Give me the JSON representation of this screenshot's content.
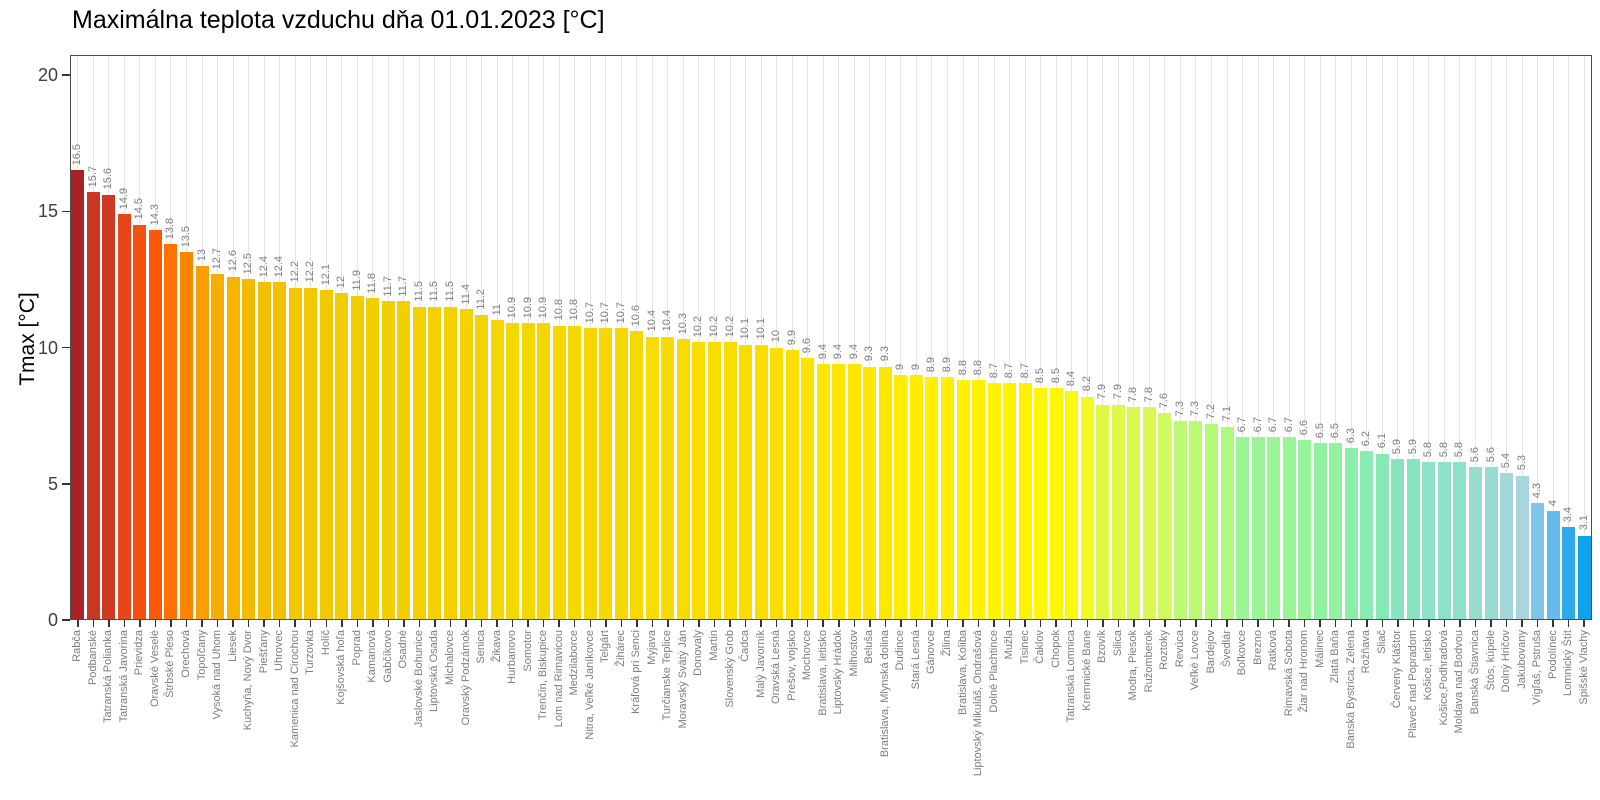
{
  "title": "Maximálna teplota vzduchu dňa 01.01.2023 [°C]",
  "y_axis": {
    "label": "Tmax [°C]",
    "ticks": [
      0,
      5,
      10,
      15,
      20
    ]
  },
  "colors": {
    "panel_border": "#4d4d4d",
    "gridline": "#e4e4e4",
    "axis_tick_text": "#404040",
    "bar_label_text": "#7d7d7d",
    "palette_stops": [
      {
        "value": 16.5,
        "color": "#A92226"
      },
      {
        "value": 15.9,
        "color": "#C03125"
      },
      {
        "value": 15.5,
        "color": "#D23B21"
      },
      {
        "value": 15.0,
        "color": "#E2431D"
      },
      {
        "value": 14.6,
        "color": "#F24E12"
      },
      {
        "value": 14.2,
        "color": "#FB5A06"
      },
      {
        "value": 13.8,
        "color": "#FF7100"
      },
      {
        "value": 13.4,
        "color": "#FF8A00"
      },
      {
        "value": 13.0,
        "color": "#FB9E00"
      },
      {
        "value": 12.7,
        "color": "#F6AE00"
      },
      {
        "value": 12.4,
        "color": "#F2C000"
      },
      {
        "value": 12.0,
        "color": "#F1CC00"
      },
      {
        "value": 11.0,
        "color": "#F4D600"
      },
      {
        "value": 10.0,
        "color": "#FADE00"
      },
      {
        "value": 9.4,
        "color": "#FFE600"
      },
      {
        "value": 9.0,
        "color": "#FFEC00"
      },
      {
        "value": 8.6,
        "color": "#FFF600"
      },
      {
        "value": 8.3,
        "color": "#F8FA14"
      },
      {
        "value": 8.0,
        "color": "#E9F93B"
      },
      {
        "value": 7.8,
        "color": "#D9F950"
      },
      {
        "value": 7.5,
        "color": "#C8FA64"
      },
      {
        "value": 7.2,
        "color": "#B4FA79"
      },
      {
        "value": 6.9,
        "color": "#A3F78D"
      },
      {
        "value": 6.6,
        "color": "#97F49C"
      },
      {
        "value": 6.3,
        "color": "#8BEFAB"
      },
      {
        "value": 6.1,
        "color": "#85EAB5"
      },
      {
        "value": 5.9,
        "color": "#87E3C0"
      },
      {
        "value": 5.7,
        "color": "#93DECC"
      },
      {
        "value": 5.5,
        "color": "#9DDAD5"
      },
      {
        "value": 5.3,
        "color": "#A9D5DF"
      },
      {
        "value": 4.8,
        "color": "#97CDE4"
      },
      {
        "value": 4.3,
        "color": "#7FC4EA"
      },
      {
        "value": 4.0,
        "color": "#66BAEC"
      },
      {
        "value": 3.7,
        "color": "#4AB1EC"
      },
      {
        "value": 3.4,
        "color": "#2FA9E9"
      },
      {
        "value": 3.1,
        "color": "#0FA1EB"
      }
    ]
  },
  "chart_data": {
    "type": "bar",
    "title": "Maximálna teplota vzduchu dňa 01.01.2023 [°C]",
    "xlabel": "",
    "ylabel": "Tmax [°C]",
    "ylim": [
      0,
      20.7
    ],
    "grid": "vertical-only",
    "legend": "none",
    "bar_labels": "values shown rotated 90° above each bar",
    "categories": [
      "Rabča",
      "Podbanské",
      "Tatranská Polianka",
      "Tatranská Javorina",
      "Prievidza",
      "Oravské Veselé",
      "Štrbské Pleso",
      "Orechová",
      "Topoľčany",
      "Vysoká nad Uhom",
      "Liesek",
      "Kuchyňa, Nový Dvor",
      "Piešťany",
      "Uhrovec",
      "Kamenica nad Cirochou",
      "Turzovka",
      "Holíč",
      "Kojšovská hoľa",
      "Poprad",
      "Kamanová",
      "Gabčíkovo",
      "Osadné",
      "Jaslovské Bohunice",
      "Liptovská Osada",
      "Michalovce",
      "Oravský Podzámok",
      "Senica",
      "Žikava",
      "Hurbanovo",
      "Somotor",
      "Trenčín, Biskupice",
      "Lom nad Rimavicou",
      "Medzilaborce",
      "Nitra, Veľké Janíkovce",
      "Telgárt",
      "Žihárec",
      "Kráľová pri Senci",
      "Myjava",
      "Turčianske Teplice",
      "Moravský Svätý Ján",
      "Donovaly",
      "Martin",
      "Slovenský Grob",
      "Čadca",
      "Malý Javorník",
      "Oravská Lesná",
      "Prešov, vojsko",
      "Mochovce",
      "Bratislava, letisko",
      "Liptovský Hrádok",
      "Milhostov",
      "Beluša",
      "Bratislava, Mlynská dolina",
      "Dudince",
      "Stará Lesná",
      "Gánovce",
      "Žilina",
      "Bratislava, Koliba",
      "Liptovský Mikuláš, Ondrašová",
      "Dolné Plachtince",
      "Mužla",
      "Tisinec",
      "Čaklov",
      "Chopok",
      "Tatranská Lomnica",
      "Kremnické Bane",
      "Bzovík",
      "Silica",
      "Modra, Piesok",
      "Ružomberok",
      "Roztoky",
      "Revúca",
      "Veľké Lovce",
      "Bardejov",
      "Švedlár",
      "Boľkovce",
      "Brezno",
      "Ratková",
      "Rimavská Sobota",
      "Žiar nad Hronom",
      "Málinec",
      "Zlatá Baňa",
      "Banská Bystrica, Zelená",
      "Rožňava",
      "Sliač",
      "Červený Kláštor",
      "Plaveč nad Popradom",
      "Košice, letisko",
      "Košice,Podhradová",
      "Moldava nad Bodvou",
      "Banská Štiavnica",
      "Štós, kúpele",
      "Dolný Hričov",
      "Jakubovany",
      "Vígľaš, Pstruša",
      "Podolínec",
      "Lomnický Štít",
      "Spišské Vlachy"
    ],
    "values": [
      16.5,
      15.7,
      15.6,
      14.9,
      14.5,
      14.3,
      13.8,
      13.5,
      13,
      12.7,
      12.6,
      12.5,
      12.4,
      12.4,
      12.2,
      12.2,
      12.1,
      12,
      11.9,
      11.8,
      11.7,
      11.7,
      11.5,
      11.5,
      11.5,
      11.4,
      11.2,
      11,
      10.9,
      10.9,
      10.9,
      10.8,
      10.8,
      10.7,
      10.7,
      10.7,
      10.6,
      10.4,
      10.4,
      10.3,
      10.2,
      10.2,
      10.2,
      10.1,
      10.1,
      10,
      9.9,
      9.6,
      9.4,
      9.4,
      9.4,
      9.3,
      9.3,
      9,
      9,
      8.9,
      8.9,
      8.8,
      8.8,
      8.7,
      8.7,
      8.7,
      8.5,
      8.5,
      8.4,
      8.2,
      7.9,
      7.9,
      7.8,
      7.8,
      7.6,
      7.3,
      7.3,
      7.2,
      7.1,
      6.7,
      6.7,
      6.7,
      6.7,
      6.6,
      6.5,
      6.5,
      6.3,
      6.2,
      6.1,
      5.9,
      5.9,
      5.8,
      5.8,
      5.8,
      5.6,
      5.6,
      5.4,
      5.3,
      4.3,
      4,
      3.4,
      3.1
    ]
  }
}
